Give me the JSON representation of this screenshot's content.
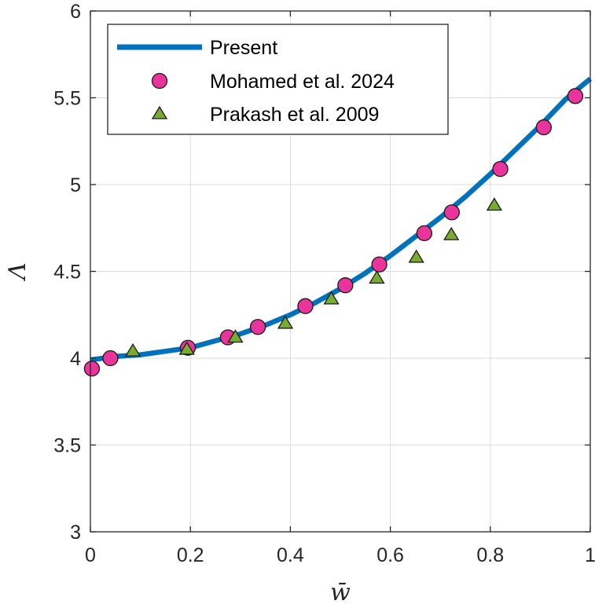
{
  "chart_data": {
    "type": "line",
    "title": "",
    "xlabel": "w̄",
    "ylabel": "Λ",
    "xlim": [
      0,
      1
    ],
    "ylim": [
      3,
      6
    ],
    "xticks": [
      0,
      0.2,
      0.4,
      0.6,
      0.8,
      1
    ],
    "xtick_labels": [
      "0",
      "0.2",
      "0.4",
      "0.6",
      "0.8",
      "1"
    ],
    "yticks": [
      3,
      3.5,
      4,
      4.5,
      5,
      5.5,
      6
    ],
    "ytick_labels": [
      "3",
      "3.5",
      "4",
      "4.5",
      "5",
      "5.5",
      "6"
    ],
    "grid": true,
    "legend_position": "top-left",
    "series": [
      {
        "name": "Present",
        "kind": "line",
        "color": "#0072BD",
        "x": [
          0,
          0.05,
          0.1,
          0.15,
          0.2,
          0.25,
          0.3,
          0.35,
          0.4,
          0.45,
          0.5,
          0.55,
          0.6,
          0.65,
          0.7,
          0.75,
          0.8,
          0.85,
          0.9,
          0.95,
          1.0
        ],
        "y": [
          3.99,
          4.01,
          4.02,
          4.04,
          4.06,
          4.1,
          4.14,
          4.19,
          4.25,
          4.32,
          4.4,
          4.49,
          4.59,
          4.7,
          4.81,
          4.93,
          5.06,
          5.2,
          5.34,
          5.49,
          5.61
        ]
      },
      {
        "name": "Mohamed et al. 2024",
        "kind": "scatter",
        "marker": "circle",
        "color": "#E8349B",
        "x": [
          0.003,
          0.04,
          0.195,
          0.275,
          0.335,
          0.43,
          0.51,
          0.578,
          0.668,
          0.723,
          0.82,
          0.907,
          0.97
        ],
        "y": [
          3.94,
          4.0,
          4.06,
          4.12,
          4.18,
          4.3,
          4.42,
          4.54,
          4.72,
          4.84,
          5.09,
          5.33,
          5.51
        ]
      },
      {
        "name": "Prakash et al. 2009",
        "kind": "scatter",
        "marker": "triangle",
        "color": "#77AC30",
        "x": [
          0.085,
          0.193,
          0.29,
          0.39,
          0.482,
          0.573,
          0.652,
          0.722,
          0.808
        ],
        "y": [
          4.04,
          4.05,
          4.12,
          4.2,
          4.34,
          4.46,
          4.58,
          4.71,
          4.88
        ]
      }
    ]
  }
}
